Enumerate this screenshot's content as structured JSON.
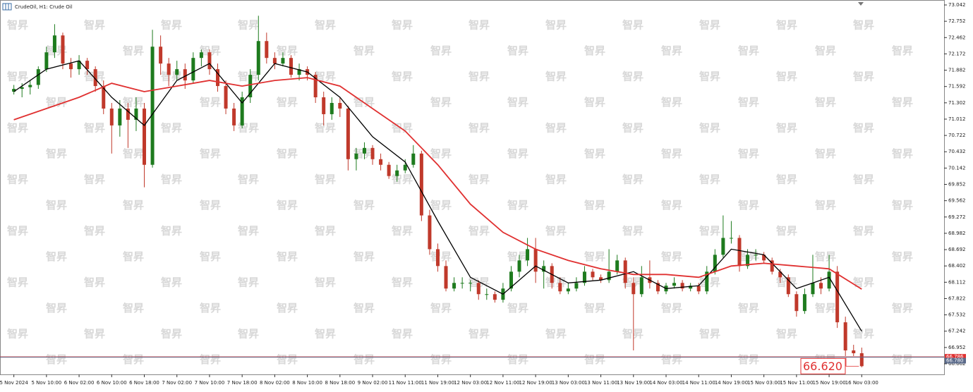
{
  "chart_data": {
    "type": "candlestick",
    "title": "CrudeOil, H1:  Crude Oil",
    "watermark": "智昇",
    "up_color": "#1e7b1e",
    "down_color": "#c0392b",
    "xlim": [
      -1.7,
      114.1
    ],
    "ylim": [
      66.474,
      73.13
    ],
    "yticks": [
      73.042,
      72.752,
      72.462,
      72.172,
      71.882,
      71.592,
      71.302,
      71.012,
      70.722,
      70.432,
      70.142,
      69.852,
      69.562,
      69.272,
      68.982,
      68.692,
      68.402,
      68.112,
      67.822,
      67.532,
      67.242,
      66.952,
      66.662
    ],
    "xticks": [
      {
        "value": 0,
        "label": "5 Nov 2024"
      },
      {
        "value": 4,
        "label": "5 Nov 10:00"
      },
      {
        "value": 8,
        "label": "6 Nov 02:00"
      },
      {
        "value": 12,
        "label": "6 Nov 10:00"
      },
      {
        "value": 16,
        "label": "6 Nov 18:00"
      },
      {
        "value": 20,
        "label": "7 Nov 02:00"
      },
      {
        "value": 24,
        "label": "7 Nov 10:00"
      },
      {
        "value": 28,
        "label": "7 Nov 18:00"
      },
      {
        "value": 32,
        "label": "8 Nov 02:00"
      },
      {
        "value": 36,
        "label": "8 Nov 10:00"
      },
      {
        "value": 40,
        "label": "8 Nov 18:00"
      },
      {
        "value": 44,
        "label": "9 Nov 02:00"
      },
      {
        "value": 48,
        "label": "11 Nov 11:00"
      },
      {
        "value": 52,
        "label": "11 Nov 19:00"
      },
      {
        "value": 56,
        "label": "12 Nov 03:00"
      },
      {
        "value": 60,
        "label": "12 Nov 11:00"
      },
      {
        "value": 64,
        "label": "12 Nov 19:00"
      },
      {
        "value": 68,
        "label": "13 Nov 03:00"
      },
      {
        "value": 72,
        "label": "13 Nov 11:00"
      },
      {
        "value": 76,
        "label": "13 Nov 19:00"
      },
      {
        "value": 80,
        "label": "14 Nov 03:00"
      },
      {
        "value": 84,
        "label": "14 Nov 11:00"
      },
      {
        "value": 88,
        "label": "14 Nov 19:00"
      },
      {
        "value": 92,
        "label": "15 Nov 03:00"
      },
      {
        "value": 96,
        "label": "15 Nov 11:00"
      },
      {
        "value": 100,
        "label": "15 Nov 19:00"
      },
      {
        "value": 104,
        "label": "16 Nov 03:00"
      }
    ],
    "open": [
      71.5,
      71.55,
      71.58,
      71.62,
      71.9,
      72.2,
      72.5,
      72.0,
      71.9,
      72.05,
      71.9,
      71.6,
      71.2,
      70.9,
      71.2,
      71.0,
      71.2,
      70.2,
      72.3,
      72.0,
      71.8,
      71.9,
      71.7,
      72.1,
      72.2,
      71.9,
      71.6,
      71.2,
      70.9,
      71.4,
      71.8,
      72.4,
      72.1,
      72.0,
      72.1,
      71.8,
      71.9,
      71.8,
      71.4,
      71.1,
      71.3,
      71.2,
      70.3,
      70.4,
      70.5,
      70.3,
      70.2,
      70.0,
      70.1,
      70.2,
      70.4,
      69.3,
      68.7,
      68.4,
      68.0,
      68.1,
      68.1,
      68.1,
      67.9,
      67.9,
      67.8,
      68.0,
      68.3,
      68.5,
      68.7,
      68.3,
      68.4,
      68.1,
      67.95,
      68.0,
      68.1,
      68.3,
      68.2,
      68.15,
      68.3,
      68.5,
      68.1,
      67.9,
      68.2,
      68.1,
      67.95,
      68.05,
      68.1,
      68.0,
      68.05,
      67.95,
      68.3,
      68.6,
      68.9,
      68.9,
      68.4,
      68.6,
      68.6,
      68.5,
      68.3,
      68.2,
      67.9,
      67.6,
      67.9,
      68.1,
      68.0,
      68.3,
      67.4,
      66.9,
      66.85
    ],
    "high": [
      71.62,
      71.65,
      71.7,
      71.95,
      72.3,
      72.7,
      72.55,
      72.1,
      72.15,
      72.1,
      71.95,
      71.7,
      71.3,
      71.35,
      71.3,
      71.4,
      71.3,
      72.6,
      72.5,
      72.1,
      72.05,
      72.0,
      72.2,
      72.25,
      72.25,
      72.0,
      71.7,
      71.3,
      71.5,
      71.9,
      72.85,
      72.55,
      72.2,
      72.2,
      72.15,
      72.0,
      71.95,
      71.85,
      71.5,
      71.4,
      71.4,
      71.25,
      70.5,
      70.6,
      70.55,
      70.4,
      70.25,
      70.2,
      70.3,
      70.55,
      70.45,
      69.4,
      68.8,
      68.5,
      68.2,
      68.2,
      68.15,
      68.15,
      68.0,
      67.95,
      68.1,
      68.4,
      68.6,
      68.9,
      68.9,
      68.5,
      68.45,
      68.2,
      68.1,
      68.2,
      68.4,
      68.35,
      68.25,
      68.7,
      68.6,
      68.55,
      68.2,
      68.4,
      68.5,
      68.15,
      68.1,
      68.2,
      68.15,
      68.1,
      68.1,
      68.4,
      68.7,
      69.3,
      69.2,
      68.95,
      68.7,
      68.7,
      68.65,
      68.55,
      68.35,
      68.25,
      67.95,
      68.0,
      68.6,
      68.2,
      68.6,
      68.4,
      67.5,
      67.0,
      66.95
    ],
    "low": [
      71.45,
      71.4,
      71.45,
      71.55,
      71.85,
      72.1,
      71.9,
      71.75,
      71.8,
      71.8,
      71.5,
      71.1,
      70.4,
      70.7,
      70.5,
      70.8,
      69.8,
      70.15,
      71.8,
      71.6,
      71.7,
      71.55,
      71.65,
      71.95,
      71.8,
      71.5,
      71.1,
      70.8,
      70.85,
      71.3,
      71.7,
      72.0,
      71.9,
      71.95,
      71.75,
      71.7,
      71.7,
      71.3,
      70.9,
      71.0,
      71.05,
      70.1,
      70.1,
      70.3,
      70.2,
      70.1,
      69.95,
      69.9,
      70.05,
      70.15,
      69.2,
      68.6,
      68.3,
      67.95,
      67.95,
      68.0,
      67.95,
      67.8,
      67.8,
      67.75,
      67.75,
      67.95,
      68.2,
      68.4,
      68.1,
      68.0,
      68.0,
      67.9,
      67.9,
      67.95,
      68.05,
      68.15,
      68.1,
      68.1,
      68.25,
      68.0,
      66.9,
      67.85,
      68.0,
      67.9,
      67.9,
      68.0,
      67.95,
      67.95,
      67.9,
      67.9,
      68.25,
      68.55,
      68.8,
      68.3,
      68.35,
      68.5,
      68.45,
      68.25,
      68.1,
      67.85,
      67.5,
      67.55,
      67.85,
      67.9,
      67.95,
      67.3,
      66.8,
      66.8,
      66.6
    ],
    "close": [
      71.55,
      71.58,
      71.62,
      71.9,
      72.2,
      72.5,
      72.0,
      71.9,
      72.05,
      71.9,
      71.6,
      71.2,
      70.9,
      71.2,
      71.0,
      71.2,
      70.2,
      72.3,
      72.0,
      71.8,
      71.9,
      71.7,
      72.1,
      72.2,
      71.9,
      71.6,
      71.2,
      70.9,
      71.4,
      71.8,
      72.4,
      72.1,
      72.0,
      72.1,
      71.8,
      71.9,
      71.8,
      71.4,
      71.1,
      71.3,
      71.2,
      70.3,
      70.4,
      70.5,
      70.3,
      70.2,
      70.0,
      70.1,
      70.2,
      70.4,
      69.3,
      68.7,
      68.4,
      68.0,
      68.1,
      68.1,
      68.1,
      67.9,
      67.9,
      67.8,
      68.0,
      68.3,
      68.5,
      68.7,
      68.3,
      68.4,
      68.1,
      67.95,
      68.0,
      68.1,
      68.3,
      68.2,
      68.15,
      68.3,
      68.5,
      68.1,
      67.9,
      68.2,
      68.1,
      67.95,
      68.05,
      68.1,
      68.0,
      68.05,
      67.95,
      68.3,
      68.6,
      68.9,
      68.9,
      68.4,
      68.6,
      68.6,
      68.5,
      68.3,
      68.2,
      67.9,
      67.6,
      67.9,
      68.1,
      68.0,
      68.3,
      67.4,
      66.9,
      66.85,
      66.62
    ],
    "lines": [
      {
        "color": "#000000",
        "x": [
          0,
          4,
          8,
          12,
          16,
          20,
          24,
          28,
          32,
          36,
          40,
          44,
          48,
          52,
          56,
          60,
          64,
          68,
          72,
          76,
          80,
          84,
          88,
          92,
          96,
          100,
          104
        ],
        "values": [
          71.5,
          71.9,
          72.05,
          71.4,
          70.9,
          71.7,
          72.0,
          71.3,
          72.0,
          71.85,
          71.4,
          70.7,
          70.25,
          69.2,
          68.2,
          67.9,
          68.4,
          68.1,
          68.15,
          68.3,
          68.0,
          68.05,
          68.7,
          68.6,
          68.0,
          68.2,
          67.24
        ]
      },
      {
        "color": "#e03030",
        "x": [
          0,
          8,
          12,
          16,
          20,
          24,
          28,
          32,
          36,
          40,
          44,
          48,
          52,
          56,
          60,
          64,
          68,
          72,
          76,
          80,
          84,
          88,
          92,
          96,
          100,
          104
        ],
        "values": [
          71.0,
          71.4,
          71.65,
          71.5,
          71.6,
          71.7,
          71.6,
          71.7,
          71.75,
          71.6,
          71.2,
          70.8,
          70.2,
          69.5,
          69.0,
          68.7,
          68.5,
          68.35,
          68.25,
          68.25,
          68.2,
          68.4,
          68.45,
          68.4,
          68.35,
          67.99
        ]
      }
    ],
    "price_lines": [
      {
        "value": 66.786,
        "label": "66.786",
        "color": "#e03030"
      },
      {
        "value": 66.78,
        "label": "66.780",
        "color": "#5a6a8a"
      }
    ],
    "last_price": {
      "value": 66.62,
      "label": "66.620",
      "color": "#e03030"
    }
  }
}
